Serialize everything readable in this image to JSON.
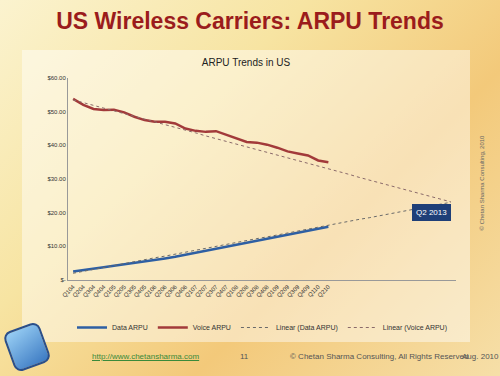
{
  "slide": {
    "title": "US Wireless Carriers: ARPU Trends",
    "url": "http://www.chetansharma.com",
    "page": "11",
    "copyright": "© Chetan Sharma Consulting, All Rights Reserved",
    "date": "Aug. 2010",
    "side_note": "© Chetan Sharma Consulting, 2010"
  },
  "chart_data": {
    "type": "line",
    "title": "ARPU Trends in US",
    "categories": [
      "Q104",
      "Q204",
      "Q304",
      "Q404",
      "Q105",
      "Q205",
      "Q305",
      "Q405",
      "Q106",
      "Q206",
      "Q306",
      "Q406",
      "Q107",
      "Q207",
      "Q307",
      "Q407",
      "Q108",
      "Q208",
      "Q308",
      "Q408",
      "Q109",
      "Q209",
      "Q309",
      "Q409",
      "Q110",
      "Q210",
      null,
      null,
      null,
      null,
      null,
      null,
      null,
      null,
      null,
      null,
      null,
      null
    ],
    "series": [
      {
        "name": "Data ARPU",
        "color": "#2e5fa3",
        "line_style": "solid",
        "values": [
          2.5,
          3.0,
          3.4,
          3.8,
          4.2,
          4.6,
          5.0,
          5.4,
          5.9,
          6.4,
          6.9,
          7.5,
          8.1,
          8.7,
          9.3,
          9.8,
          10.3,
          10.9,
          11.5,
          12.2,
          12.8,
          13.4,
          14.0,
          14.6,
          15.2,
          15.8,
          null,
          null,
          null,
          null,
          null,
          null,
          null,
          null,
          null,
          null,
          null,
          null
        ]
      },
      {
        "name": "Voice ARPU",
        "color": "#a23a3a",
        "line_style": "solid",
        "values": [
          53.8,
          52.0,
          50.8,
          50.5,
          50.6,
          49.8,
          48.5,
          47.5,
          47.0,
          47.0,
          46.5,
          45.0,
          44.3,
          44.0,
          44.2,
          43.2,
          42.0,
          41.0,
          40.8,
          40.2,
          39.3,
          38.2,
          37.6,
          37.0,
          35.5,
          35.0,
          null,
          null,
          null,
          null,
          null,
          null,
          null,
          null,
          null,
          null,
          null,
          null
        ]
      },
      {
        "name": "Linear (Data ARPU)",
        "color": "#6a6a6a",
        "line_style": "dotted",
        "values": [
          2.0,
          2.6,
          3.1,
          3.7,
          4.3,
          4.9,
          5.4,
          6.0,
          6.6,
          7.1,
          7.7,
          8.3,
          8.8,
          9.4,
          10.0,
          10.6,
          11.1,
          11.7,
          12.3,
          12.8,
          13.4,
          14.0,
          14.5,
          15.1,
          15.7,
          16.3,
          16.8,
          17.4,
          18.0,
          18.5,
          19.1,
          19.7,
          20.2,
          20.8,
          21.4,
          22.0,
          22.5,
          23.1
        ]
      },
      {
        "name": "Linear (Voice ARPU)",
        "color": "#8a6a6a",
        "line_style": "dotted",
        "values": [
          53.5,
          52.7,
          51.9,
          51.0,
          50.2,
          49.4,
          48.6,
          47.8,
          46.9,
          46.1,
          45.3,
          44.5,
          43.7,
          42.8,
          42.0,
          41.2,
          40.4,
          39.6,
          38.7,
          37.9,
          37.1,
          36.3,
          35.5,
          34.6,
          33.8,
          33.0,
          32.2,
          31.4,
          30.5,
          29.7,
          28.9,
          28.1,
          27.3,
          26.4,
          25.6,
          24.8,
          24.0,
          23.2
        ]
      }
    ],
    "annotations": [
      {
        "text": "Q2 2013",
        "y": 20
      }
    ],
    "ylim": [
      0,
      60
    ],
    "yticks": [
      {
        "value": 0,
        "label": "$-"
      },
      {
        "value": 10,
        "label": "$10.00"
      },
      {
        "value": 20,
        "label": "$20.00"
      },
      {
        "value": 30,
        "label": "$30.00"
      },
      {
        "value": 40,
        "label": "$40.00"
      },
      {
        "value": 50,
        "label": "$50.00"
      },
      {
        "value": 60,
        "label": "$60.00"
      }
    ],
    "grid": false,
    "legend": "bottom"
  }
}
